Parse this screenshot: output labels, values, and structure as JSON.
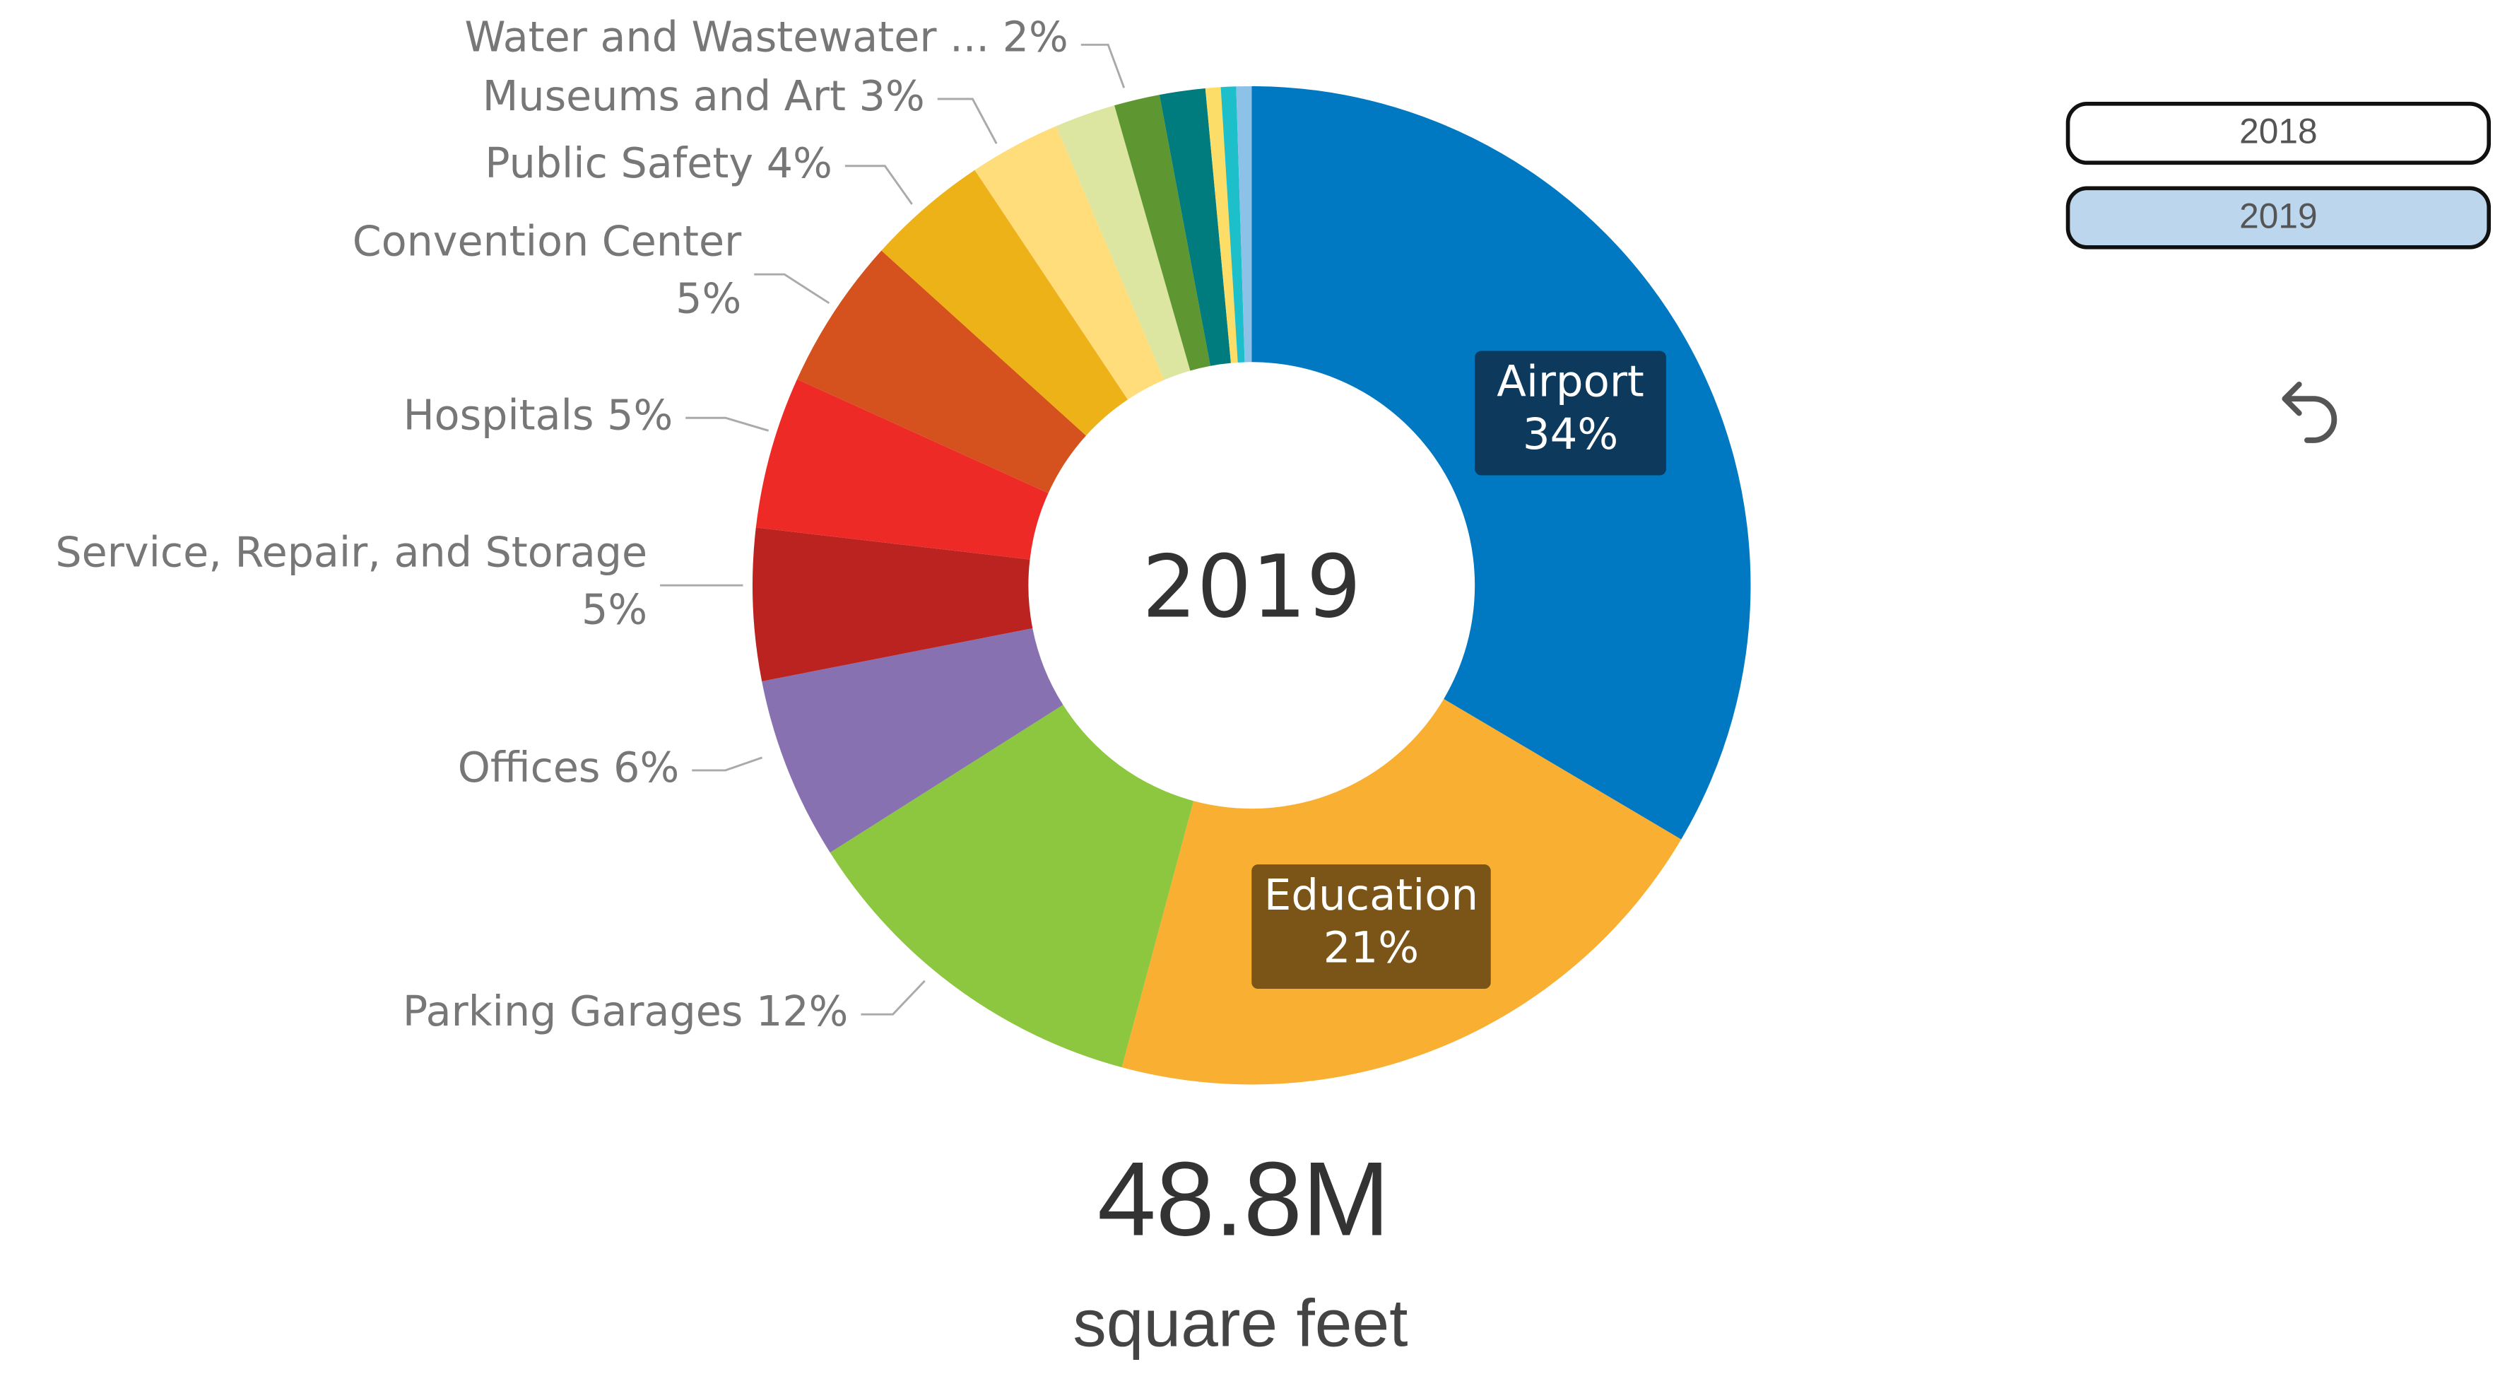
{
  "chart_data": {
    "type": "donut",
    "categories": [
      "Airport",
      "Education",
      "Parking Garages",
      "Offices",
      "Service, Repair, and Storage",
      "Hospitals",
      "Convention Center",
      "Public Safety",
      "Museums and Art",
      "Water and Wastewater ...",
      null,
      null,
      null,
      null,
      null
    ],
    "values": [
      34,
      21,
      12,
      6,
      5,
      5,
      5,
      4,
      3,
      2,
      1.5,
      1.5,
      0.5,
      0.5,
      0.5
    ],
    "value_labels": [
      "34%",
      "21%",
      "12%",
      "6%",
      "5%",
      "5%",
      "5%",
      "4%",
      "3%",
      "2%",
      null,
      null,
      null,
      null,
      null
    ],
    "colors": [
      "#0179c2",
      "#f9af32",
      "#8dc63f",
      "#8771b1",
      "#bb2321",
      "#ee2a27",
      "#d5511e",
      "#edb217",
      "#fedd7a",
      "#dce6a0",
      "#5e9732",
      "#007b7e",
      "#fbdd67",
      "#1dbfcb",
      "#8dc2e8"
    ],
    "center_label": "2019",
    "total": "48.8M",
    "total_caption": "square feet"
  },
  "slicer": {
    "items": [
      "2018",
      "2019"
    ],
    "selected": 1
  }
}
